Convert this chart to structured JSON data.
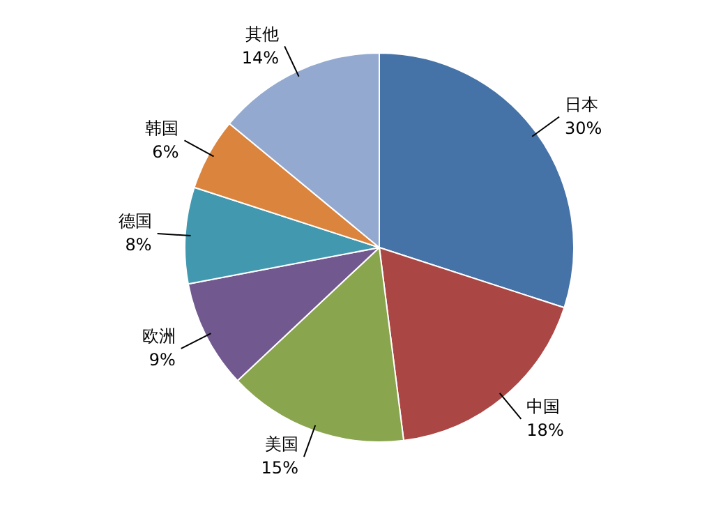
{
  "chart_data": {
    "type": "pie",
    "categories": [
      "日本",
      "中国",
      "美国",
      "欧洲",
      "德国",
      "韩国",
      "其他"
    ],
    "values": [
      30,
      18,
      15,
      9,
      8,
      6,
      14
    ],
    "colors": [
      "#4572a7",
      "#aa4643",
      "#89a54e",
      "#71588f",
      "#4198af",
      "#db843d",
      "#93a9cf"
    ],
    "value_labels": [
      "30%",
      "18%",
      "15%",
      "9%",
      "8%",
      "6%",
      "14%"
    ],
    "legend": false
  }
}
